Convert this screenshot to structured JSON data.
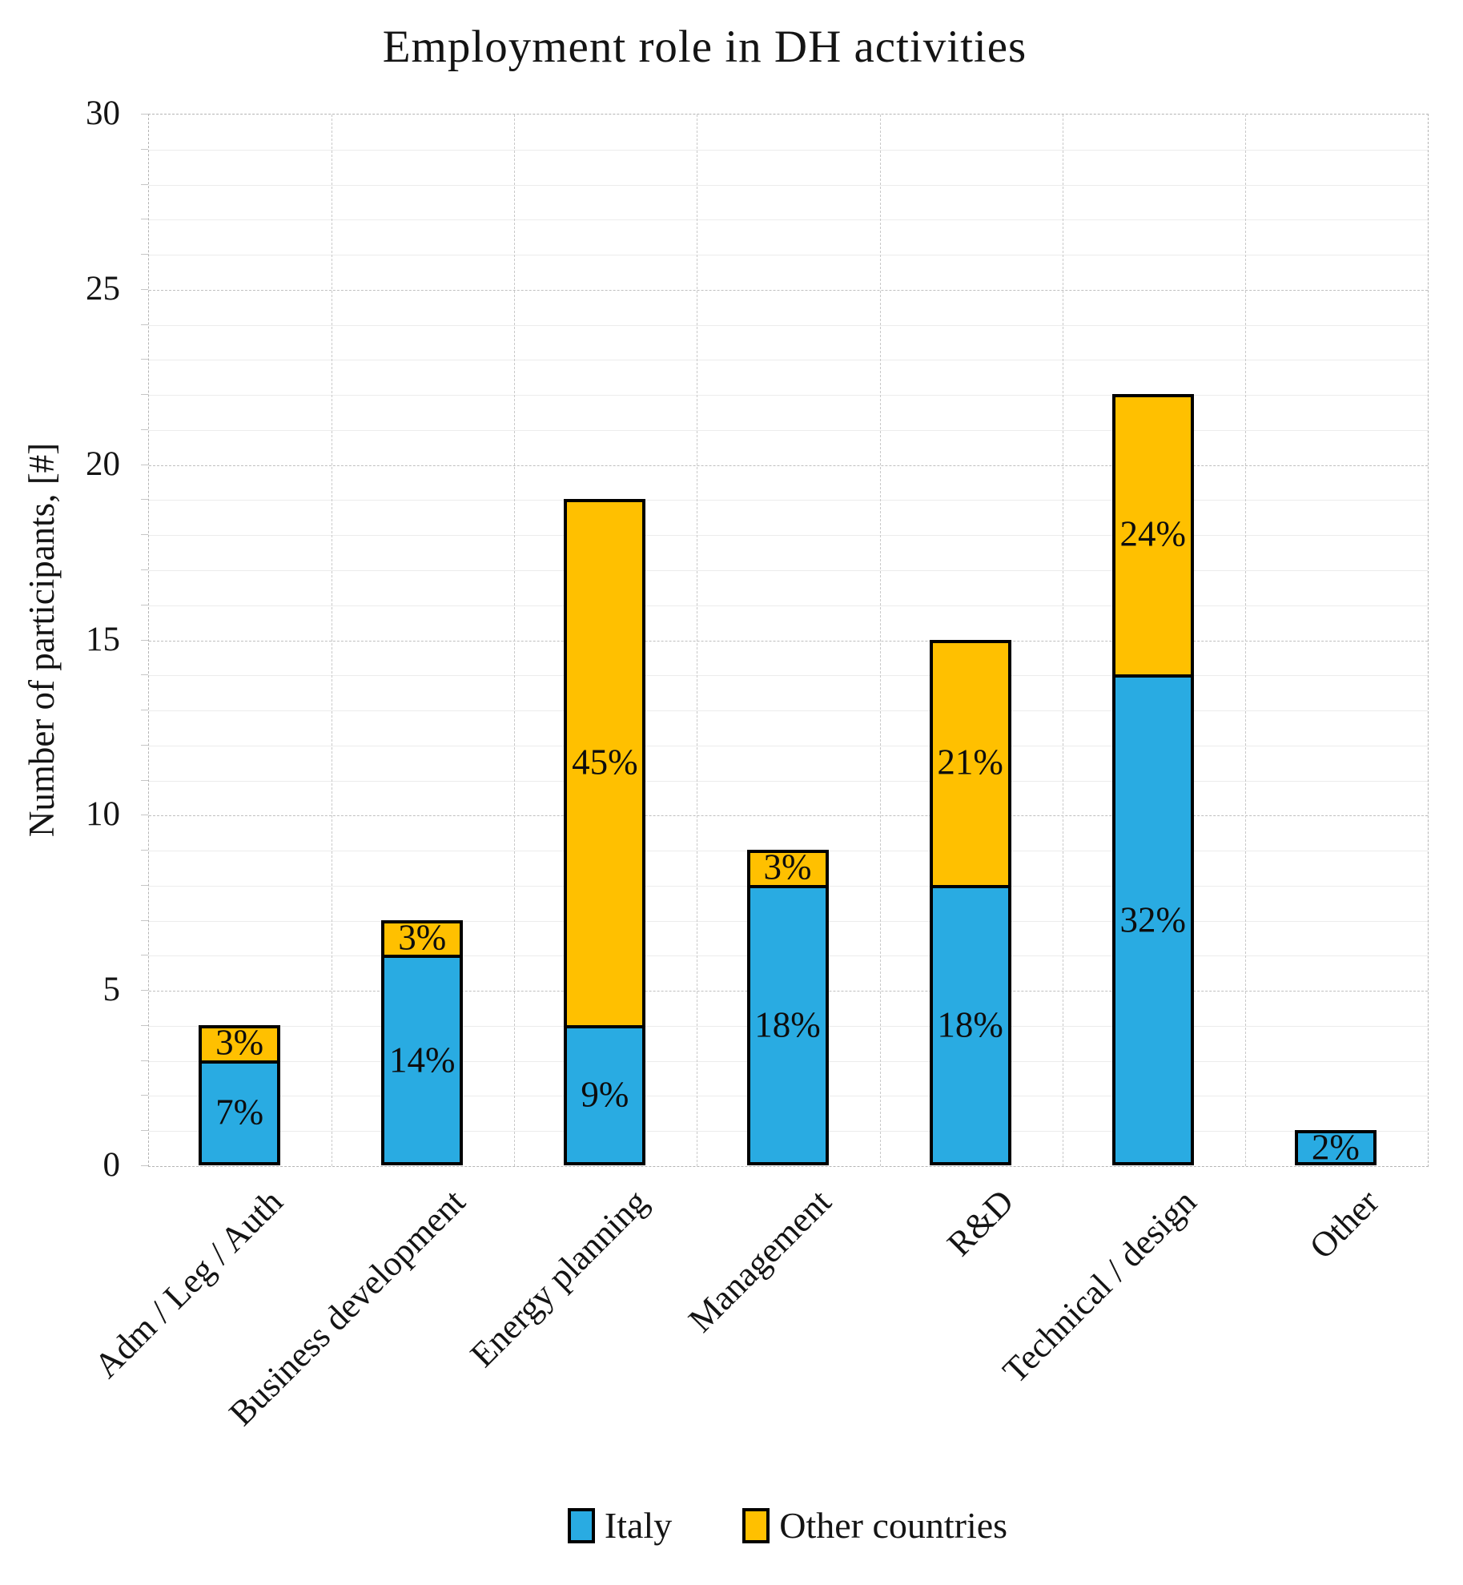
{
  "title": "Employment role in DH activities",
  "y_axis": {
    "label": "Number of participants, [#]"
  },
  "chart_data": {
    "type": "bar",
    "stacked": true,
    "title": "Employment role in DH activities",
    "xlabel": "",
    "ylabel": "Number of participants, [#]",
    "ylim": [
      0,
      30
    ],
    "yticks": [
      0,
      5,
      10,
      15,
      20,
      25,
      30
    ],
    "grid": {
      "minor_step": 1,
      "major_step": 5,
      "vertical_category_lines": true
    },
    "legend_position": "bottom",
    "categories": [
      "Adm / Leg / Auth",
      "Business development",
      "Energy planning",
      "Management",
      "R&D",
      "Technical / design",
      "Other"
    ],
    "series": [
      {
        "name": "Italy",
        "color": "#29ABE2",
        "values": [
          3,
          6,
          4,
          8,
          8,
          14,
          1
        ],
        "data_labels": [
          "7%",
          "14%",
          "9%",
          "18%",
          "18%",
          "32%",
          "2%"
        ]
      },
      {
        "name": "Other countries",
        "color": "#FFC000",
        "values": [
          1,
          1,
          15,
          1,
          7,
          8,
          0
        ],
        "data_labels": [
          "3%",
          "3%",
          "45%",
          "3%",
          "21%",
          "24%",
          ""
        ]
      }
    ],
    "totals": [
      4,
      7,
      19,
      9,
      15,
      22,
      1
    ]
  }
}
